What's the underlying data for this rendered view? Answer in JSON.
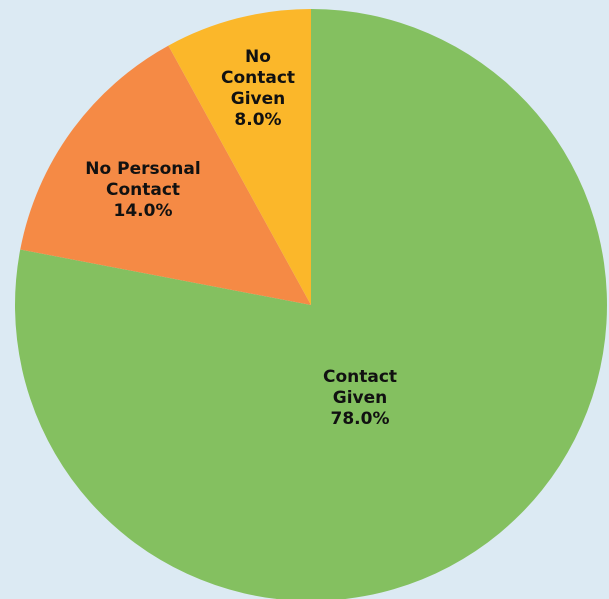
{
  "chart_data": {
    "type": "pie",
    "categories": [
      "Contact Given",
      "No Personal Contact",
      "No Contact Given"
    ],
    "values": [
      78,
      14,
      8
    ],
    "value_labels": [
      "78.0%",
      "14.0%",
      "8.0%"
    ],
    "colors": [
      "#84c060",
      "#f58a45",
      "#fbb72a"
    ]
  }
}
